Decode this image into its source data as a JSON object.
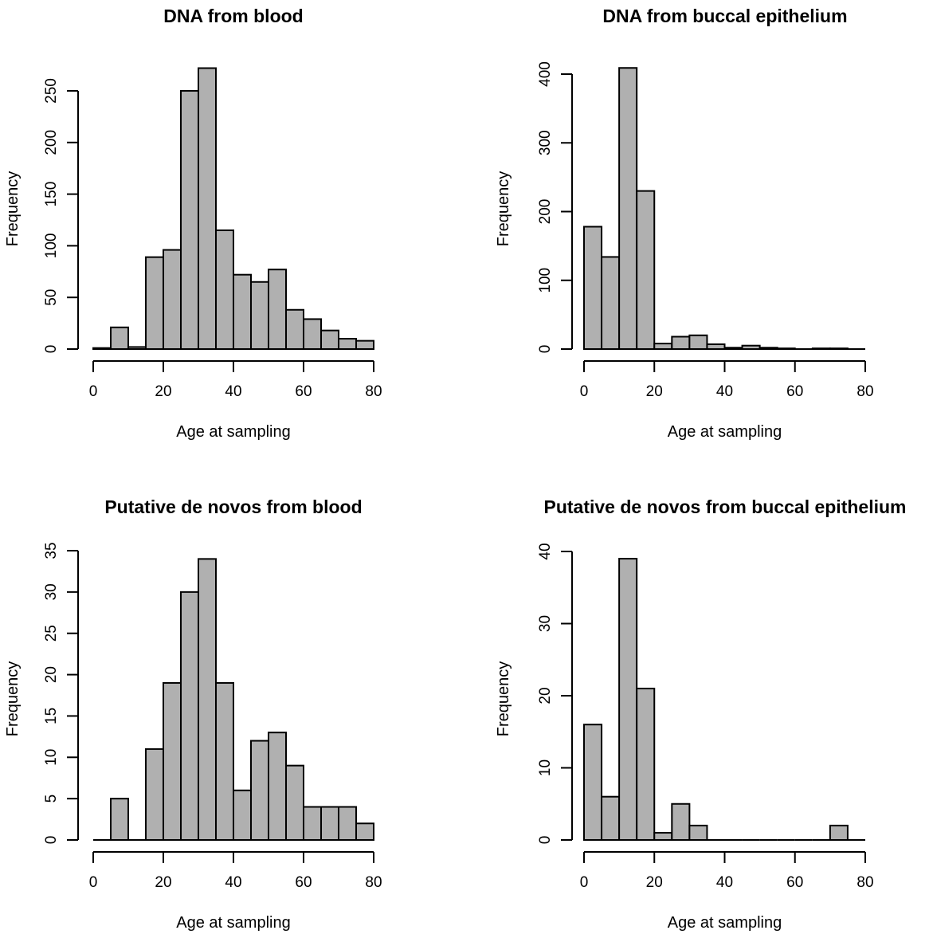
{
  "chart_data": [
    {
      "type": "bar",
      "title": "DNA from blood",
      "xlabel": "Age at sampling",
      "ylabel": "Frequency",
      "bin_edges": [
        0,
        5,
        10,
        15,
        20,
        25,
        30,
        35,
        40,
        45,
        50,
        55,
        60,
        65,
        70,
        75,
        80
      ],
      "values": [
        1,
        21,
        2,
        89,
        96,
        250,
        272,
        115,
        72,
        65,
        77,
        38,
        29,
        18,
        10,
        8
      ],
      "xlim": [
        0,
        80
      ],
      "xticks": [
        0,
        20,
        40,
        60,
        80
      ],
      "yticks": [
        0,
        50,
        100,
        150,
        200,
        250
      ],
      "ylim": [
        0,
        272
      ],
      "grid": false
    },
    {
      "type": "bar",
      "title": "DNA from buccal epithelium",
      "xlabel": "Age at sampling",
      "ylabel": "Frequency",
      "bin_edges": [
        0,
        5,
        10,
        15,
        20,
        25,
        30,
        35,
        40,
        45,
        50,
        55,
        60,
        65,
        70,
        75,
        80
      ],
      "values": [
        178,
        134,
        409,
        230,
        8,
        18,
        20,
        7,
        2,
        5,
        2,
        1,
        0,
        1,
        1,
        0
      ],
      "xlim": [
        0,
        80
      ],
      "xticks": [
        0,
        20,
        40,
        60,
        80
      ],
      "yticks": [
        0,
        100,
        200,
        300,
        400
      ],
      "ylim": [
        0,
        409
      ],
      "grid": false
    },
    {
      "type": "bar",
      "title": "Putative de novos from blood",
      "xlabel": "Age at sampling",
      "ylabel": "Frequency",
      "bin_edges": [
        0,
        5,
        10,
        15,
        20,
        25,
        30,
        35,
        40,
        45,
        50,
        55,
        60,
        65,
        70,
        75,
        80
      ],
      "values": [
        0,
        5,
        0,
        11,
        19,
        30,
        34,
        19,
        6,
        12,
        13,
        9,
        4,
        4,
        4,
        2
      ],
      "xlim": [
        0,
        80
      ],
      "xticks": [
        0,
        20,
        40,
        60,
        80
      ],
      "yticks": [
        0,
        5,
        10,
        15,
        20,
        25,
        30,
        35
      ],
      "ylim": [
        0,
        35
      ],
      "grid": false
    },
    {
      "type": "bar",
      "title": "Putative de novos from buccal epithelium",
      "xlabel": "Age at sampling",
      "ylabel": "Frequency",
      "bin_edges": [
        0,
        5,
        10,
        15,
        20,
        25,
        30,
        35,
        40,
        45,
        50,
        55,
        60,
        65,
        70,
        75,
        80
      ],
      "values": [
        16,
        6,
        39,
        21,
        1,
        5,
        2,
        0,
        0,
        0,
        0,
        0,
        0,
        0,
        2,
        0
      ],
      "xlim": [
        0,
        80
      ],
      "xticks": [
        0,
        20,
        40,
        60,
        80
      ],
      "yticks": [
        0,
        10,
        20,
        30,
        40
      ],
      "ylim": [
        0,
        40
      ],
      "grid": false
    }
  ]
}
